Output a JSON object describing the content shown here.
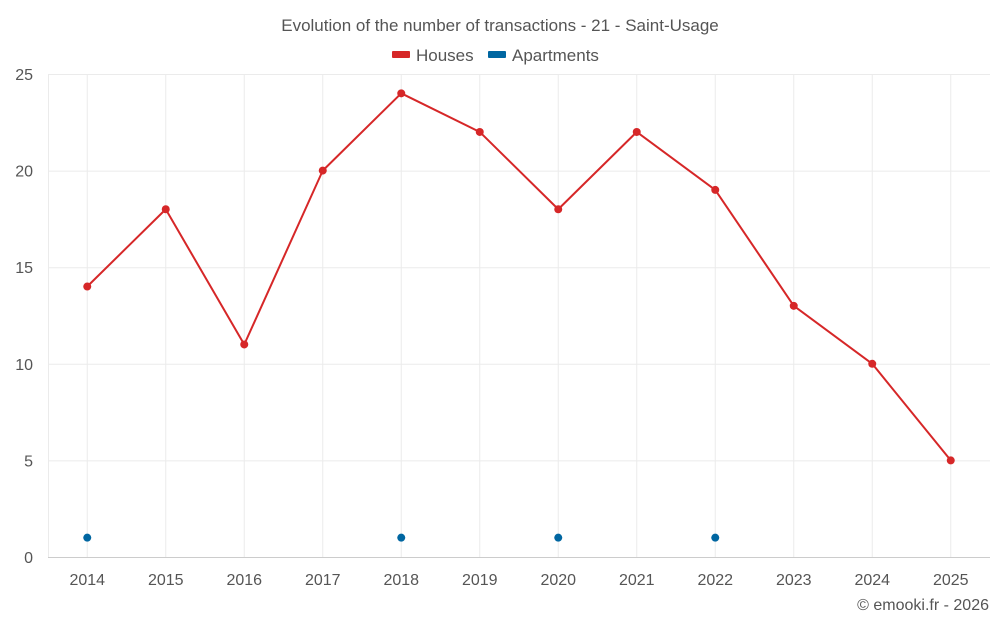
{
  "chart_data": {
    "type": "line",
    "title": "Evolution of the number of transactions - 21 - Saint-Usage",
    "x": [
      "2014",
      "2015",
      "2016",
      "2017",
      "2018",
      "2019",
      "2020",
      "2021",
      "2022",
      "2023",
      "2024",
      "2025"
    ],
    "series": [
      {
        "name": "Houses",
        "color": "#d62728",
        "values": [
          14,
          18,
          11,
          20,
          24,
          22,
          18,
          22,
          19,
          13,
          10,
          5
        ],
        "style": "line-markers"
      },
      {
        "name": "Apartments",
        "color": "#0066a1",
        "values": [
          1,
          null,
          null,
          null,
          1,
          null,
          1,
          null,
          1,
          null,
          null,
          null
        ],
        "style": "markers"
      }
    ],
    "ylim": [
      0,
      25
    ],
    "yticks": [
      0,
      5,
      10,
      15,
      20,
      25
    ],
    "xlabel": "",
    "ylabel": "",
    "grid": true,
    "legend": "top-center"
  },
  "credit": "© emooki.fr - 2026"
}
